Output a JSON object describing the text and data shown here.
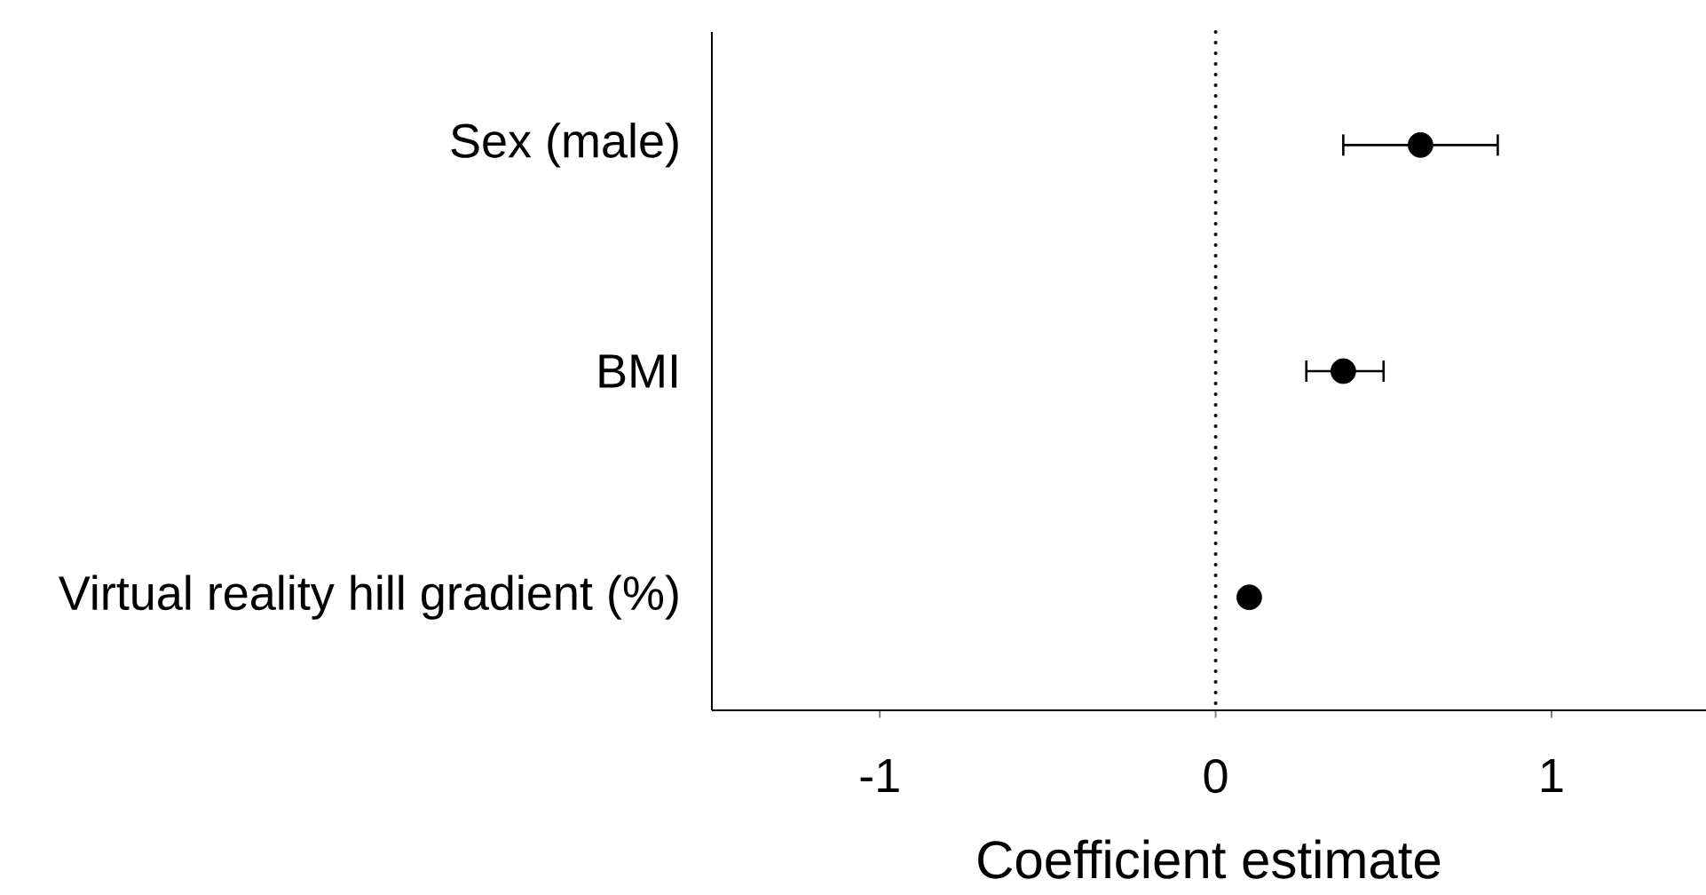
{
  "chart_data": {
    "type": "scatter",
    "orientation": "horizontal",
    "xlabel": "Coefficient estimate",
    "categories": [
      "Sex (male)",
      "BMI",
      "Virtual reality hill gradient (%)"
    ],
    "values": [
      0.61,
      0.38,
      0.1
    ],
    "errors": [
      [
        0.38,
        0.84
      ],
      [
        0.27,
        0.5
      ],
      null
    ],
    "color": "#000000",
    "marker": "circle",
    "xlim": [
      -1.5,
      1.46
    ],
    "xticks": [
      -1,
      0,
      1
    ],
    "ref_lines": [
      {
        "axis": "x",
        "value": 0,
        "line_style": "dotted"
      }
    ],
    "grid": false
  }
}
